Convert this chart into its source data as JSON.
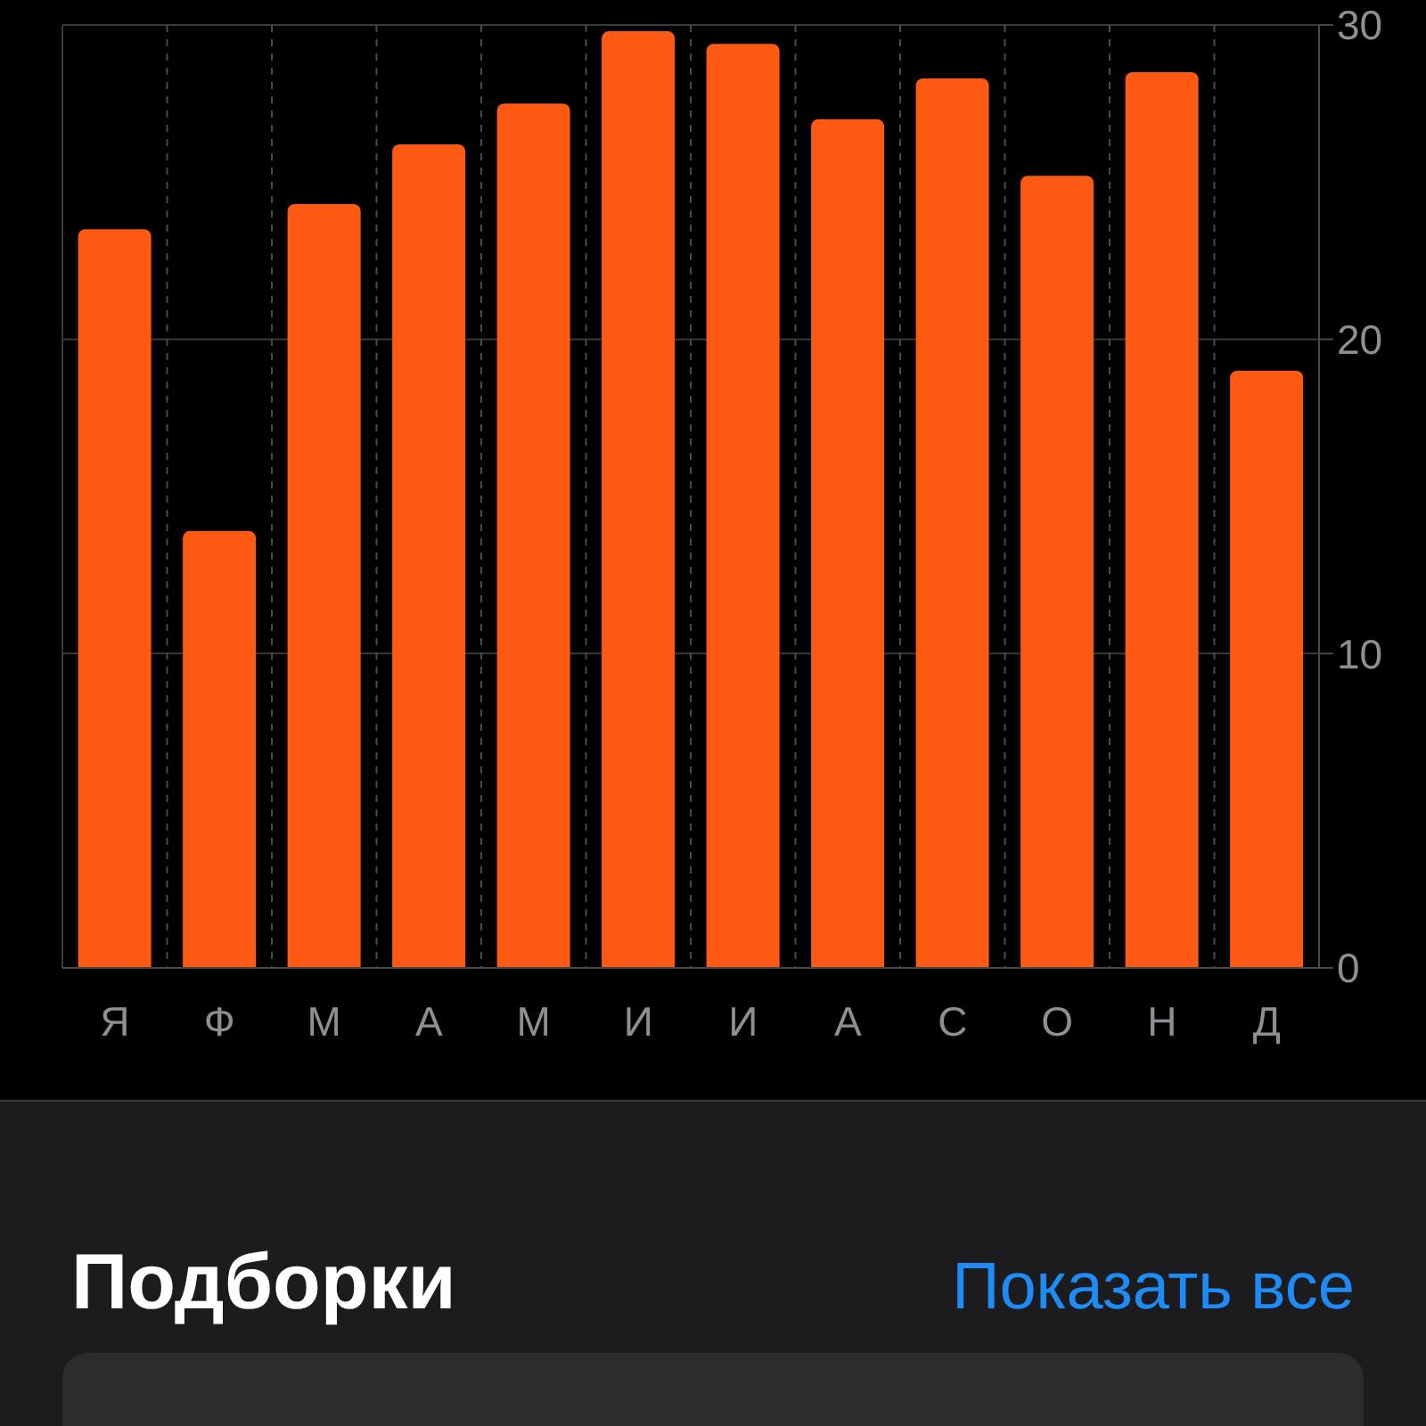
{
  "chart_data": {
    "type": "bar",
    "categories": [
      "Я",
      "Ф",
      "М",
      "А",
      "М",
      "И",
      "И",
      "А",
      "С",
      "О",
      "Н",
      "Д"
    ],
    "values": [
      23.5,
      13.9,
      24.3,
      26.2,
      27.5,
      29.8,
      29.4,
      27.0,
      28.3,
      25.2,
      28.5,
      19.0
    ],
    "color": "#ff5a14",
    "ylim": [
      0,
      30
    ],
    "yticks": [
      0,
      10,
      20,
      30
    ],
    "grid": true,
    "annotations": [
      "Подборки",
      "Показать все"
    ]
  }
}
